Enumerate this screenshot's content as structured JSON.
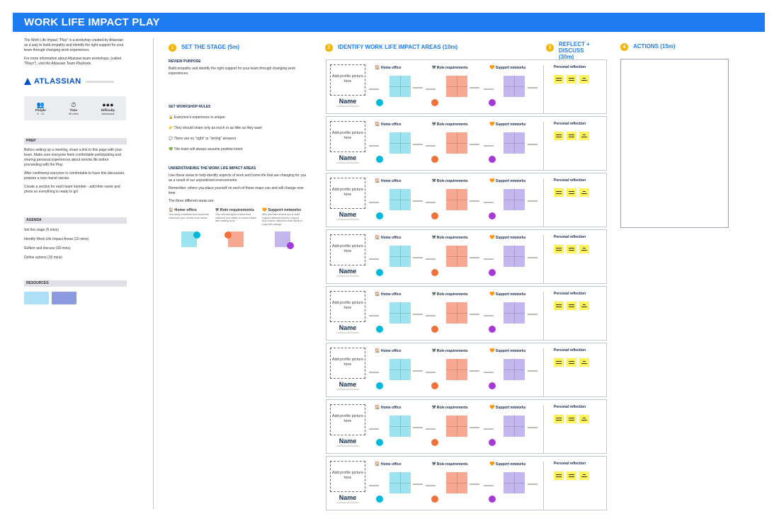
{
  "banner": {
    "title": "WORK LIFE IMPACT PLAY"
  },
  "left": {
    "intro": [
      "The Work Life Impact \"Play\" is a workshop created by Atlassian as a way to build empathy and identify the right support for your team through changing work experiences.",
      "For more information about Atlassian team workshops, (called \"Plays\"), visit the Atlassian Team Playbook."
    ],
    "logo_word": "ATLASSIAN",
    "stats": [
      {
        "icon": "people-icon",
        "glyph": "👥",
        "label": "People",
        "value": "4 - 11"
      },
      {
        "icon": "timer-icon",
        "glyph": "⏱",
        "label": "Time",
        "value": "90 mins"
      },
      {
        "icon": "difficulty-icon",
        "glyph": "●●●",
        "label": "Difficulty",
        "value": "Advanced"
      }
    ],
    "prep": {
      "header": "PREP",
      "paragraphs": [
        "Before setting up a meeting, share a link to this page with your team. Make sure everyone feels comfortable participating and sharing personal experiences about remote life before proceeding with the Play.",
        "After confirming everyone is comfortable to have this discussion, prepare a new mural canvas.",
        "Create a section for each team member - add their name and photo so everything is ready to go!"
      ]
    },
    "agenda": {
      "header": "AGENDA",
      "items": [
        "Set the stage (5 mins)",
        "Identify Work Life Impact Areas (10 mins)",
        "Reflect and discuss (30 mins)",
        "Define actions (15 mins)"
      ]
    },
    "resources": {
      "header": "RESOURCES"
    }
  },
  "steps": [
    {
      "num": "1",
      "title": "SET THE STAGE (5m)"
    },
    {
      "num": "2",
      "title": "IDENTIFY WORK LIFE IMPACT AREAS (10m)"
    },
    {
      "num": "3",
      "title": "REFLECT + DISCUSS (30m)"
    },
    {
      "num": "4",
      "title": "ACTIONS (15m)"
    }
  ],
  "stage": {
    "review_title": "REVIEW PURPOSE",
    "review_text": "Build empathy and identify the right support for your team through changing work experiences.",
    "rules_title": "SET WORKSHOP RULES",
    "rules": [
      {
        "icon": "lock-icon",
        "glyph": "🔒",
        "text": "Everyone's experience is unique"
      },
      {
        "icon": "hand-icon",
        "glyph": "👉",
        "text": "They should share only as much or as little as they want"
      },
      {
        "icon": "speech-icon",
        "glyph": "💬",
        "text": "There are no \"right\" or \"wrong\" answers"
      },
      {
        "icon": "heart-icon",
        "glyph": "💚",
        "text": "The team will always assume positive intent"
      }
    ],
    "understand_title": "UNDERSTANDING THE WORK LIFE IMPACT AREAS",
    "understand_text": [
      "Use these areas to help identify aspects of work and home life that are changing for you as a result of our unpredicted environments.",
      "Remember, where you place yourself on each of these maps can and will change over time.",
      "The three different areas are:"
    ],
    "areas": [
      {
        "title": "Home office",
        "glyph": "🏠",
        "desc": "Your living conditions and household influences your remote work needs."
      },
      {
        "title": "Role requirements",
        "glyph": "⚒",
        "desc": "Your role and types of work best influence your ability to conduct tasks with existing tools."
      },
      {
        "title": "Support networks",
        "glyph": "🧡",
        "desc": "Who you have around you to build support networks and the support they receive influences their ability to cope with change."
      }
    ]
  },
  "rows": {
    "profile_text": "Add profile picture here",
    "name": "Name",
    "areas": [
      "Home office",
      "Role requirements",
      "Support networks"
    ],
    "area_glyphs": [
      "🏠",
      "⚒",
      "🧡"
    ],
    "reflection_title": "Personal reflection",
    "count": 8
  },
  "colors": {
    "banner": "#1e7cf2",
    "home": "#9be3ef",
    "role": "#f8a891",
    "support": "#c3b6ee",
    "home_dot": "#00b8d9",
    "role_dot": "#f2713a",
    "support_dot": "#a539d6",
    "sticky": "#fff35c",
    "step": "#f5b400"
  }
}
